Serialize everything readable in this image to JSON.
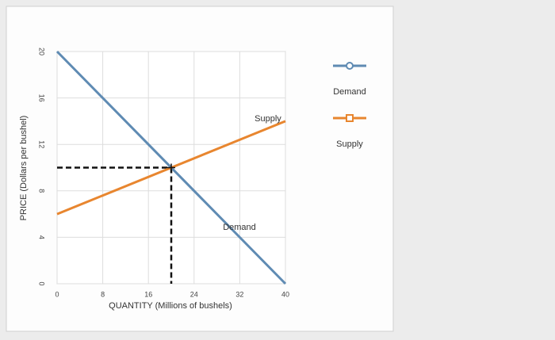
{
  "chart_data": {
    "type": "line",
    "x": [
      0,
      40
    ],
    "series": [
      {
        "name": "Demand",
        "color": "#5f8bb3",
        "values": [
          20,
          0
        ]
      },
      {
        "name": "Supply",
        "color": "#e8862f",
        "values": [
          6,
          14
        ]
      }
    ],
    "annotations": [
      "Supply",
      "Demand"
    ],
    "equilibrium": {
      "x": 20,
      "y": 10
    },
    "xlabel": "QUANTITY (Millions of bushels)",
    "ylabel": "PRICE (Dollars per bushel)",
    "xlim": [
      0,
      40
    ],
    "xticks": [
      0,
      8,
      16,
      24,
      32,
      40
    ],
    "ylim": [
      0,
      20
    ],
    "yticks": [
      0,
      4,
      8,
      12,
      16,
      20
    ],
    "grid": true
  }
}
